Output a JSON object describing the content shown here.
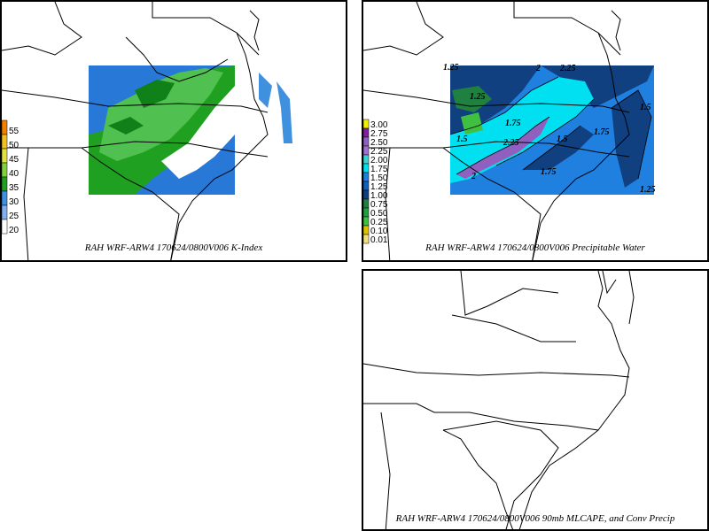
{
  "panels": {
    "kindex": {
      "caption": "RAH WRF-ARW4 170624/0800V006  K-Index",
      "legend": [
        "55",
        "50",
        "45",
        "40",
        "35",
        "30",
        "25",
        "20"
      ],
      "legend_colors": [
        "#f08000",
        "#f0c020",
        "#e0e040",
        "#80d040",
        "#20a020",
        "#4090e0",
        "#80b0f0",
        "#ffffff"
      ]
    },
    "pwat": {
      "caption": "RAH WRF-ARW4 170624/0800V006  Precipitable Water",
      "legend": [
        "3.00",
        "2.75",
        "2.50",
        "2.25",
        "2.00",
        "1.75",
        "1.50",
        "1.25",
        "1.00",
        "0.75",
        "0.50",
        "0.25",
        "0.10",
        "0.01"
      ],
      "legend_colors": [
        "#f0f000",
        "#8020a0",
        "#9060c0",
        "#a070d0",
        "#40d0d0",
        "#00e0f0",
        "#2080e0",
        "#1060c0",
        "#104080",
        "#208040",
        "#20a040",
        "#40c040",
        "#e0c000",
        "#f0e080"
      ],
      "contour_labels": [
        "1.25",
        "2",
        "2.25",
        "1.75",
        "1.5",
        "1.25",
        "2.25",
        "2",
        "1.75",
        "1.5",
        "1.75",
        "1.5",
        "1.25"
      ]
    },
    "mlcape": {
      "caption": "RAH WRF-ARW4 170624/0800V006  90mb MLCAPE, and Conv Precip"
    }
  }
}
